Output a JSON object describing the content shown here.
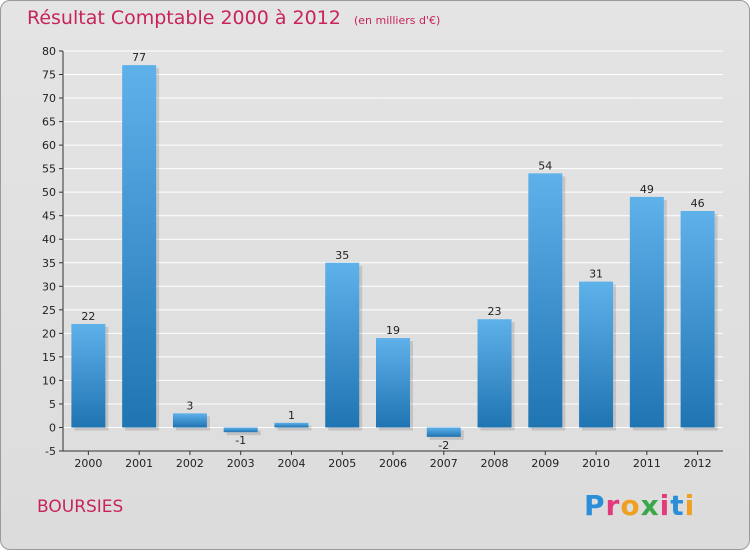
{
  "header": {
    "title": "Résultat Comptable 2000 à 2012",
    "unit": "(en milliers d'€)"
  },
  "commune": "BOURSIES",
  "logo": {
    "letters": [
      "P",
      "r",
      "o",
      "x",
      "i",
      "t",
      "i"
    ]
  },
  "colors": {
    "bar_top": "#5fb1ea",
    "bar_bottom": "#1f74b2",
    "title": "#c8245a",
    "grid": "#ffffff"
  },
  "chart_data": {
    "type": "bar",
    "categories": [
      "2000",
      "2001",
      "2002",
      "2003",
      "2004",
      "2005",
      "2006",
      "2007",
      "2008",
      "2009",
      "2010",
      "2011",
      "2012"
    ],
    "values": [
      22,
      77,
      3,
      -1,
      1,
      35,
      19,
      -2,
      23,
      54,
      31,
      49,
      46
    ],
    "ylim": [
      -5,
      80
    ],
    "yticks": [
      -5,
      0,
      5,
      10,
      15,
      20,
      25,
      30,
      35,
      40,
      45,
      50,
      55,
      60,
      65,
      70,
      75,
      80
    ],
    "grid": true
  }
}
